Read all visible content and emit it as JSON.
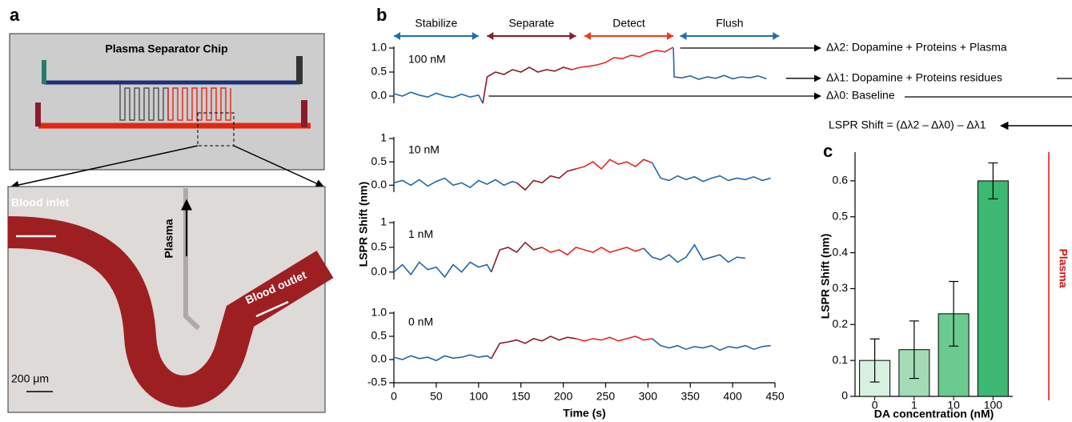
{
  "panels": [
    "a",
    "b",
    "c"
  ],
  "photo": {
    "title": "Plasma Separator Chip",
    "inlet": "Blood inlet",
    "plasma": "Plasma",
    "outlet": "Blood outlet",
    "scale": "200 μm"
  },
  "chart_data": [
    {
      "type": "line",
      "label": "100 nM",
      "ylabel": "LSPR Shift (nm)",
      "xlim": [
        0,
        450
      ],
      "ylim": [
        -0.15,
        1.0
      ],
      "yticks": [
        {
          "value": 0,
          "label": "0.0"
        },
        0.5,
        {
          "value": 1,
          "label": "1.0"
        }
      ],
      "phases": [
        {
          "label": "Stabilize",
          "start": 0,
          "end": 100,
          "color": "#1f6fb0"
        },
        {
          "label": "Separate",
          "start": 110,
          "end": 215,
          "color": "#8b1a2b"
        },
        {
          "label": "Detect",
          "start": 225,
          "end": 330,
          "color": "#f03a1e"
        },
        {
          "label": "Flush",
          "start": 338,
          "end": 455,
          "color": "#1f6fb0"
        }
      ],
      "markers": [
        {
          "label": "Δλ2: Dopamine + Proteins + Plasma",
          "level": 1.0,
          "from": 338
        },
        {
          "label": "Δλ1: Dopamine + Proteins residues",
          "level": 0.37,
          "from": 463
        },
        {
          "label": "Δλ0: Baseline",
          "level": 0,
          "from": 112
        }
      ],
      "formula": "LSPR Shift = (Δλ2 – Δλ0) – Δλ1",
      "series": [
        {
          "color": "#2266aa",
          "x": [
            0,
            10,
            20,
            30,
            40,
            50,
            60,
            70,
            80,
            90,
            100,
            105
          ],
          "values": [
            0.05,
            0.0,
            0.08,
            0.02,
            -0.02,
            0.06,
            0.0,
            -0.03,
            0.04,
            -0.02,
            0.02,
            -0.15
          ]
        },
        {
          "color": "#8b1a2b",
          "x": [
            105,
            110,
            120,
            130,
            140,
            150,
            160,
            170,
            180,
            190,
            200,
            210
          ],
          "values": [
            -0.15,
            0.4,
            0.5,
            0.45,
            0.55,
            0.5,
            0.6,
            0.5,
            0.55,
            0.52,
            0.6,
            0.55
          ]
        },
        {
          "color": "#ee2222",
          "x": [
            210,
            220,
            230,
            240,
            250,
            260,
            270,
            280,
            290,
            300,
            310,
            320,
            330
          ],
          "values": [
            0.55,
            0.6,
            0.62,
            0.65,
            0.7,
            0.8,
            0.78,
            0.85,
            0.82,
            0.9,
            0.95,
            0.92,
            1.02
          ]
        },
        {
          "color": "#2266aa",
          "x": [
            330,
            331,
            340,
            350,
            360,
            370,
            380,
            390,
            400,
            410,
            420,
            430,
            440
          ],
          "values": [
            1.0,
            0.4,
            0.38,
            0.42,
            0.35,
            0.4,
            0.37,
            0.43,
            0.36,
            0.4,
            0.38,
            0.42,
            0.36
          ]
        }
      ]
    },
    {
      "type": "line",
      "label": "10 nM",
      "xlim": [
        0,
        450
      ],
      "ylim": [
        -0.15,
        1.0
      ],
      "yticks": [
        {
          "value": 0,
          "label": "0.0"
        },
        0.5,
        1
      ],
      "series": [
        {
          "color": "#2266aa",
          "x": [
            0,
            10,
            20,
            30,
            40,
            50,
            60,
            70,
            80,
            90,
            100,
            110,
            120,
            130,
            140,
            145
          ],
          "values": [
            0.05,
            0.1,
            0.0,
            0.12,
            -0.02,
            0.08,
            0.15,
            0.0,
            0.05,
            -0.05,
            0.1,
            0.02,
            0.12,
            0.0,
            0.08,
            0.05
          ]
        },
        {
          "color": "#8b1a2b",
          "x": [
            145,
            155,
            165,
            175,
            185,
            195,
            205,
            215
          ],
          "values": [
            0.05,
            -0.1,
            0.1,
            0.05,
            0.2,
            0.15,
            0.3,
            0.35
          ]
        },
        {
          "color": "#ee2222",
          "x": [
            215,
            225,
            235,
            245,
            255,
            265,
            275,
            285,
            295,
            305
          ],
          "values": [
            0.35,
            0.4,
            0.5,
            0.35,
            0.55,
            0.45,
            0.5,
            0.4,
            0.55,
            0.48
          ]
        },
        {
          "color": "#2266aa",
          "x": [
            305,
            315,
            325,
            335,
            345,
            355,
            365,
            375,
            385,
            395,
            405,
            415,
            425,
            435,
            445
          ],
          "values": [
            0.48,
            0.15,
            0.1,
            0.2,
            0.12,
            0.18,
            0.08,
            0.15,
            0.2,
            0.1,
            0.15,
            0.12,
            0.18,
            0.1,
            0.15
          ]
        }
      ]
    },
    {
      "type": "line",
      "label": "1 nM",
      "xlim": [
        0,
        450
      ],
      "ylim": [
        -0.15,
        1.0
      ],
      "yticks": [
        {
          "value": 0,
          "label": "0.0"
        },
        0.5,
        1
      ],
      "series": [
        {
          "color": "#2266aa",
          "x": [
            0,
            10,
            20,
            30,
            40,
            50,
            60,
            70,
            80,
            90,
            100,
            110,
            115
          ],
          "values": [
            0.0,
            0.15,
            -0.05,
            0.2,
            0.05,
            0.1,
            -0.1,
            0.15,
            0.0,
            0.2,
            0.1,
            0.15,
            0.0
          ]
        },
        {
          "color": "#8b1a2b",
          "x": [
            115,
            125,
            135,
            145,
            155,
            165,
            175
          ],
          "values": [
            0.0,
            0.45,
            0.5,
            0.4,
            0.6,
            0.45,
            0.5
          ]
        },
        {
          "color": "#ee2222",
          "x": [
            175,
            185,
            195,
            205,
            215,
            225,
            235,
            245,
            255,
            265,
            275,
            285,
            295
          ],
          "values": [
            0.5,
            0.4,
            0.45,
            0.35,
            0.5,
            0.45,
            0.4,
            0.5,
            0.4,
            0.45,
            0.5,
            0.42,
            0.48
          ]
        },
        {
          "color": "#2266aa",
          "x": [
            295,
            305,
            315,
            325,
            335,
            345,
            355,
            365,
            375,
            385,
            395,
            405,
            415
          ],
          "values": [
            0.48,
            0.3,
            0.25,
            0.35,
            0.2,
            0.3,
            0.55,
            0.25,
            0.3,
            0.35,
            0.2,
            0.3,
            0.28
          ]
        }
      ]
    },
    {
      "type": "line",
      "label": "0 nM",
      "xlabel": "Time (s)",
      "xlim": [
        0,
        450
      ],
      "ylim": [
        -0.5,
        1.0
      ],
      "xticks": [
        0,
        50,
        100,
        150,
        200,
        250,
        300,
        350,
        400,
        450
      ],
      "yticks": [
        -0.5,
        {
          "value": 0,
          "label": "0.0"
        },
        0.5,
        {
          "value": 1,
          "label": "1.0"
        }
      ],
      "series": [
        {
          "color": "#2266aa",
          "x": [
            0,
            10,
            20,
            30,
            40,
            50,
            60,
            70,
            80,
            90,
            100,
            110,
            115
          ],
          "values": [
            0.05,
            0.0,
            0.08,
            0.02,
            0.05,
            -0.02,
            0.08,
            0.03,
            0.05,
            0.1,
            0.05,
            0.08,
            0.02
          ]
        },
        {
          "color": "#8b1a2b",
          "x": [
            115,
            125,
            135,
            145,
            155,
            165,
            175,
            185,
            195,
            205,
            215
          ],
          "values": [
            0.02,
            0.35,
            0.38,
            0.42,
            0.35,
            0.45,
            0.4,
            0.5,
            0.42,
            0.48,
            0.45
          ]
        },
        {
          "color": "#ee2222",
          "x": [
            215,
            225,
            235,
            245,
            255,
            265,
            275,
            285,
            295,
            305
          ],
          "values": [
            0.45,
            0.4,
            0.45,
            0.42,
            0.48,
            0.4,
            0.45,
            0.5,
            0.42,
            0.45
          ]
        },
        {
          "color": "#2266aa",
          "x": [
            305,
            315,
            325,
            335,
            345,
            355,
            365,
            375,
            385,
            395,
            405,
            415,
            425,
            435,
            445
          ],
          "values": [
            0.45,
            0.3,
            0.25,
            0.3,
            0.22,
            0.28,
            0.25,
            0.3,
            0.2,
            0.28,
            0.25,
            0.3,
            0.22,
            0.28,
            0.3
          ]
        }
      ]
    },
    {
      "type": "bar",
      "xlabel": "DA concentration (nM)",
      "ylabel": "LSPR Shift (nm)",
      "side_label": "Plasma",
      "categories": [
        "0",
        "1",
        "10",
        "100"
      ],
      "values": [
        0.1,
        0.13,
        0.23,
        0.6
      ],
      "errors": [
        0.06,
        0.08,
        0.09,
        0.05
      ],
      "colors": [
        "#d8f0df",
        "#a3dbb6",
        "#6cc98f",
        "#3cb873"
      ],
      "ylim": [
        0,
        0.68
      ],
      "yticks": [
        0,
        0.1,
        0.2,
        0.3,
        0.4,
        0.5,
        0.6
      ]
    }
  ]
}
